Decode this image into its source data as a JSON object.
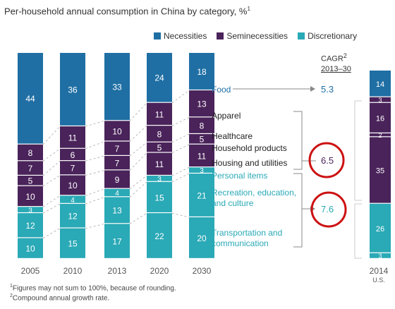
{
  "title": "Per-household annual consumption in China by category, %",
  "title_sup": "1",
  "legend": [
    {
      "label": "Necessities",
      "color": "#1f6fa4"
    },
    {
      "label": "Seminecessities",
      "color": "#4a235a"
    },
    {
      "label": "Discretionary",
      "color": "#2aa9b6"
    }
  ],
  "cagr_header": {
    "line1": "CAGR",
    "sup": "2",
    "line2": "2013–30"
  },
  "footnotes": [
    {
      "sup": "1",
      "text": "Figures may not sum to 100%, because of rounding."
    },
    {
      "sup": "2",
      "text": "Compound annual growth rate."
    }
  ],
  "chart_data": {
    "type": "bar",
    "stacked": true,
    "categories": [
      "2005",
      "2010",
      "2013",
      "2020",
      "2030"
    ],
    "segments": [
      {
        "name": "Transportation and communication",
        "group": "Discretionary",
        "values": [
          10,
          15,
          17,
          22,
          20
        ]
      },
      {
        "name": "Recreation, education, and culture",
        "group": "Discretionary",
        "values": [
          12,
          12,
          13,
          15,
          21
        ]
      },
      {
        "name": "Personal items",
        "group": "Discretionary",
        "values": [
          3,
          4,
          4,
          3,
          3
        ]
      },
      {
        "name": "Housing and utilities",
        "group": "Seminecessities",
        "values": [
          10,
          10,
          9,
          11,
          11
        ]
      },
      {
        "name": "Household products",
        "group": "Seminecessities",
        "values": [
          5,
          7,
          7,
          5,
          5
        ]
      },
      {
        "name": "Healthcare",
        "group": "Seminecessities",
        "values": [
          7,
          6,
          7,
          8,
          8
        ]
      },
      {
        "name": "Apparel",
        "group": "Seminecessities",
        "values": [
          8,
          11,
          10,
          11,
          13
        ]
      },
      {
        "name": "Food",
        "group": "Necessities",
        "values": [
          44,
          36,
          33,
          24,
          18
        ]
      }
    ],
    "category_labels": [
      {
        "text": "Food",
        "color": "#1f6fa4"
      },
      {
        "text": "Apparel",
        "color": "#222222"
      },
      {
        "text": "Healthcare",
        "color": "#222222"
      },
      {
        "text": "Household products",
        "color": "#222222"
      },
      {
        "text": "Housing and utilities",
        "color": "#222222"
      },
      {
        "text": "Personal items",
        "color": "#2aa9b6"
      },
      {
        "text": "Recreation, education,",
        "color": "#2aa9b6"
      },
      {
        "text": "and culture",
        "color": "#2aa9b6"
      },
      {
        "text": "Transportation and",
        "color": "#2aa9b6"
      },
      {
        "text": "communication",
        "color": "#2aa9b6"
      }
    ],
    "cagr": [
      {
        "group": "Food",
        "value": "5.3",
        "color": "#1f6fa4"
      },
      {
        "group": "Seminecessities",
        "value": "6.5",
        "color": "#4a235a"
      },
      {
        "group": "Discretionary",
        "value": "7.6",
        "color": "#2aa9b6"
      }
    ],
    "us_2014": {
      "label": "2014",
      "sublabel": "U.S.",
      "segments": [
        {
          "group": "Discretionary",
          "value": 3
        },
        {
          "group": "Discretionary",
          "value": 26
        },
        {
          "group": "Seminecessities",
          "value": 35
        },
        {
          "group": "Seminecessities",
          "value": 2
        },
        {
          "group": "Seminecessities",
          "value": 16
        },
        {
          "group": "Seminecessities",
          "value": 3
        },
        {
          "group": "Necessities",
          "value": 14
        }
      ]
    },
    "colors": {
      "Necessities": "#1f6fa4",
      "Seminecessities": "#4a235a",
      "Discretionary": "#2aa9b6",
      "circle": "#cc1111"
    }
  }
}
